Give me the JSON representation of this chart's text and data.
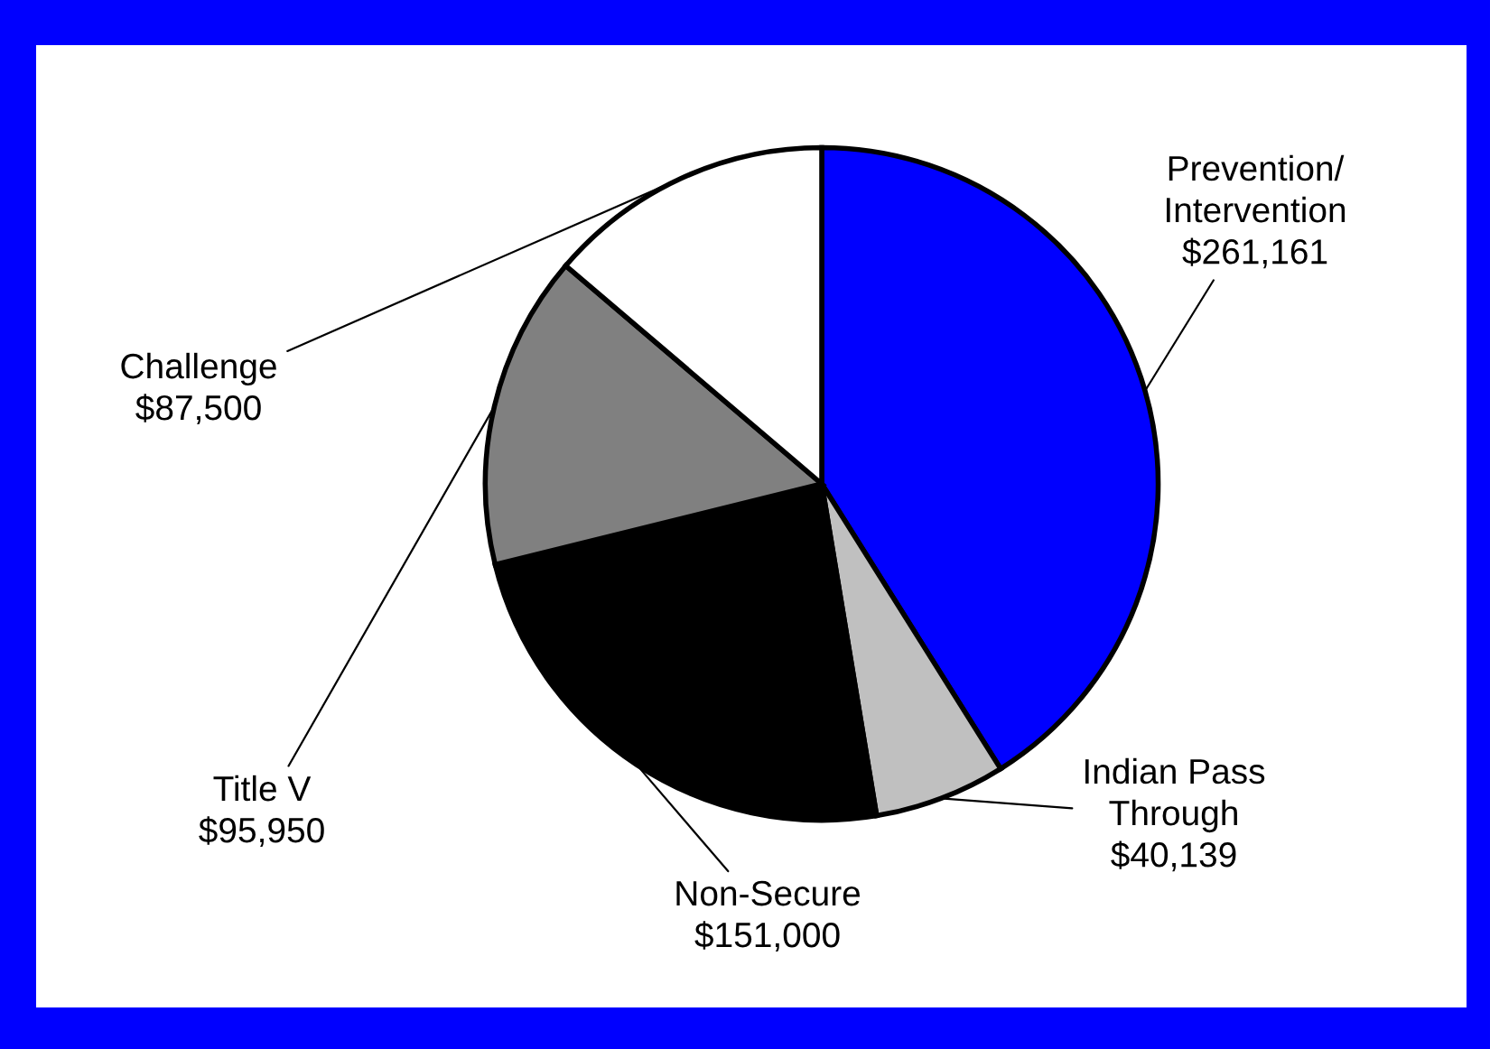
{
  "chart_data": {
    "type": "pie",
    "categories": [
      "Prevention/\nIntervention",
      "Indian Pass\nThrough",
      "Non-Secure",
      "Title V",
      "Challenge"
    ],
    "values": [
      261161,
      40139,
      151000,
      95950,
      87500
    ],
    "value_labels": [
      "$261,161",
      "$40,139",
      "$151,000",
      "$95,950",
      "$87,500"
    ],
    "colors": [
      "#0000ff",
      "#c0c0c0",
      "#000000",
      "#808080",
      "#ffffff"
    ]
  }
}
